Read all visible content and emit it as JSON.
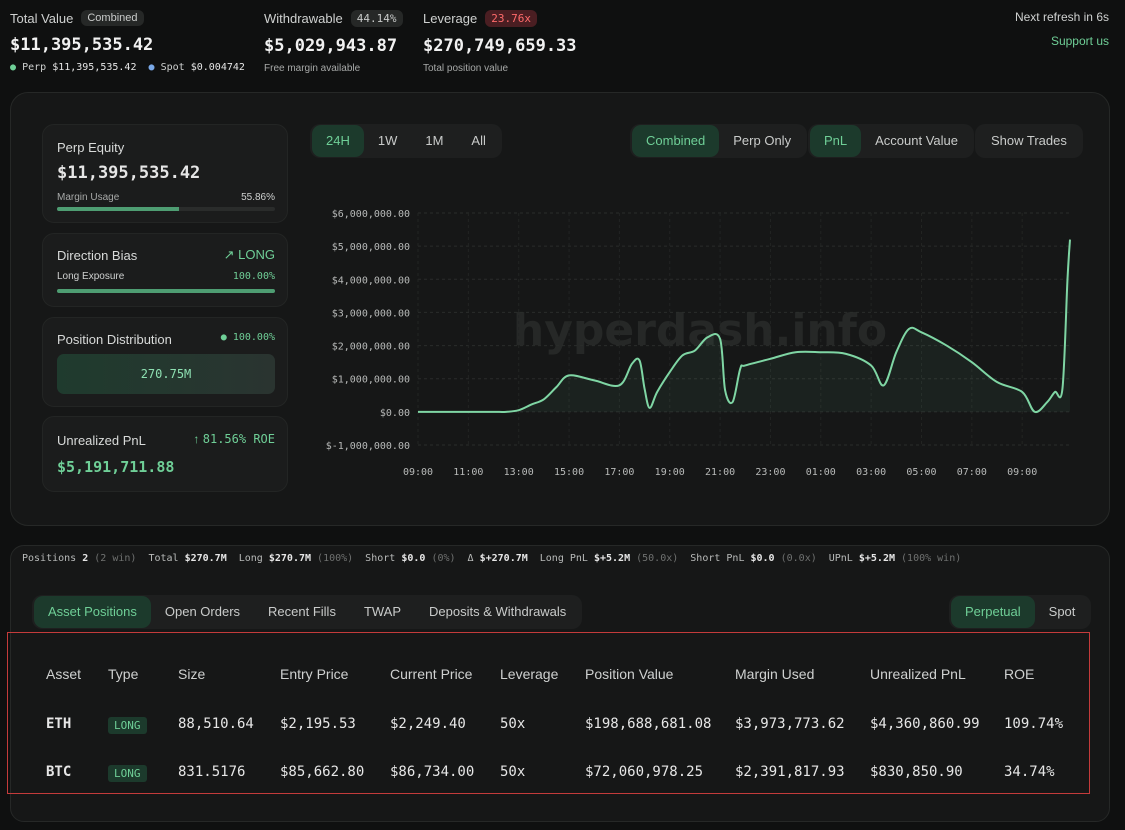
{
  "header": {
    "total_value": {
      "label": "Total Value",
      "badge": "Combined",
      "value": "$11,395,535.42",
      "perp_label": "Perp",
      "perp_value": "$11,395,535.42",
      "spot_label": "Spot",
      "spot_value": "$0.004742"
    },
    "withdrawable": {
      "label": "Withdrawable",
      "badge": "44.14%",
      "value": "$5,029,943.87",
      "sub": "Free margin available"
    },
    "leverage": {
      "label": "Leverage",
      "badge": "23.76x",
      "value": "$270,749,659.33",
      "sub": "Total position value"
    },
    "refresh": "Next refresh in 6s",
    "support": "Support us"
  },
  "cards": {
    "perp_equity": {
      "title": "Perp Equity",
      "value": "$11,395,535.42",
      "margin_label": "Margin Usage",
      "margin_value": "55.86%",
      "margin_fraction": 0.5586
    },
    "direction_bias": {
      "title": "Direction Bias",
      "direction": "LONG",
      "exposure_label": "Long Exposure",
      "exposure_value": "100.00%",
      "exposure_fraction": 1.0
    },
    "position_distribution": {
      "title": "Position Distribution",
      "pct": "100.00%",
      "bar_value": "270.75M"
    },
    "unrealized_pnl": {
      "title": "Unrealized PnL",
      "roe": "81.56% ROE",
      "value": "$5,191,711.88"
    }
  },
  "chart_controls": {
    "timeframes": [
      "24H",
      "1W",
      "1M",
      "All"
    ],
    "active_timeframe": "24H",
    "scope": [
      "Combined",
      "Perp Only"
    ],
    "metric": [
      "PnL",
      "Account Value"
    ],
    "show_trades": "Show Trades"
  },
  "chart_data": {
    "type": "line",
    "title": "",
    "watermark": "hyperdash.info",
    "xlabel": "",
    "ylabel": "",
    "ylim": [
      -1000000,
      6000000
    ],
    "y_ticks": [
      -1000000,
      0,
      1000000,
      2000000,
      3000000,
      4000000,
      5000000,
      6000000
    ],
    "y_tick_labels": [
      "$-1,000,000.00",
      "$0.00",
      "$1,000,000.00",
      "$2,000,000.00",
      "$3,000,000.00",
      "$4,000,000.00",
      "$5,000,000.00",
      "$6,000,000.00"
    ],
    "x_tick_labels": [
      "09:00",
      "11:00",
      "13:00",
      "15:00",
      "17:00",
      "19:00",
      "21:00",
      "23:00",
      "01:00",
      "03:00",
      "05:00",
      "07:00",
      "09:00"
    ],
    "xlim": [
      0,
      25.9
    ],
    "series": [
      {
        "name": "PnL",
        "color": "#7fd6a4",
        "x": [
          0,
          1,
          2,
          3,
          3.5,
          4,
          4.5,
          5,
          5.5,
          6,
          7,
          8,
          8.5,
          8.8,
          9,
          9.2,
          9.5,
          10,
          10.5,
          11,
          11.5,
          12,
          12.2,
          12.5,
          12.8,
          13,
          14,
          15,
          16,
          17,
          18,
          18.5,
          19,
          19.5,
          20,
          21,
          22,
          23,
          24,
          24.5,
          25,
          25.3,
          25.6,
          25.8,
          25.9
        ],
        "y": [
          0,
          0,
          0,
          0,
          0,
          50000,
          220000,
          380000,
          750000,
          1100000,
          950000,
          800000,
          1450000,
          1550000,
          700000,
          120000,
          600000,
          1200000,
          1700000,
          1850000,
          2250000,
          2200000,
          650000,
          300000,
          1300000,
          1400000,
          1600000,
          1800000,
          1800000,
          1750000,
          1400000,
          800000,
          1800000,
          2500000,
          2400000,
          2000000,
          1500000,
          900000,
          600000,
          0,
          300000,
          600000,
          700000,
          4000000,
          5200000
        ]
      }
    ]
  },
  "positions_summary": {
    "positions_label": "Positions",
    "positions_count": "2",
    "positions_win": "(2 win)",
    "total_label": "Total",
    "total": "$270.7M",
    "long_label": "Long",
    "long": "$270.7M",
    "long_pct": "(100%)",
    "short_label": "Short",
    "short": "$0.0",
    "short_pct": "(0%)",
    "delta_label": "Δ",
    "delta": "$+270.7M",
    "long_pnl_label": "Long PnL",
    "long_pnl": "$+5.2M",
    "long_pnl_x": "(50.0x)",
    "short_pnl_label": "Short PnL",
    "short_pnl": "$0.0",
    "short_pnl_x": "(0.0x)",
    "upnl_label": "UPnL",
    "upnl": "$+5.2M",
    "upnl_win": "(100% win)"
  },
  "tabs": [
    "Asset Positions",
    "Open Orders",
    "Recent Fills",
    "TWAP",
    "Deposits & Withdrawals"
  ],
  "market_tabs": [
    "Perpetual",
    "Spot"
  ],
  "table": {
    "headers": [
      "Asset",
      "Type",
      "Size",
      "Entry Price",
      "Current Price",
      "Leverage",
      "Position Value",
      "Margin Used",
      "Unrealized PnL",
      "ROE"
    ],
    "rows": [
      [
        "ETH",
        "LONG",
        "88,510.64",
        "$2,195.53",
        "$2,249.40",
        "50x",
        "$198,688,681.08",
        "$3,973,773.62",
        "$4,360,860.99",
        "109.74%"
      ],
      [
        "BTC",
        "LONG",
        "831.5176",
        "$85,662.80",
        "$86,734.00",
        "50x",
        "$72,060,978.25",
        "$2,391,817.93",
        "$830,850.90",
        "34.74%"
      ]
    ]
  },
  "colors": {
    "accent": "#6fcf97",
    "panel": "#161717",
    "highlight": "#c43b3b"
  }
}
